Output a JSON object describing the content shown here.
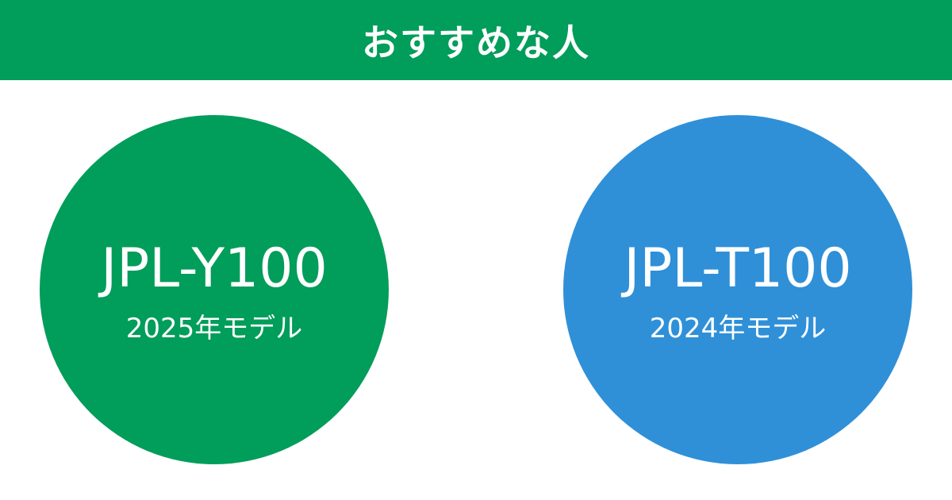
{
  "header": {
    "title": "おすすめな人"
  },
  "colors": {
    "green": "#019d5a",
    "blue": "#2f90d8"
  },
  "products": [
    {
      "model": "JPL-Y100",
      "year": "2025年モデル"
    },
    {
      "model": "JPL-T100",
      "year": "2024年モデル"
    }
  ]
}
